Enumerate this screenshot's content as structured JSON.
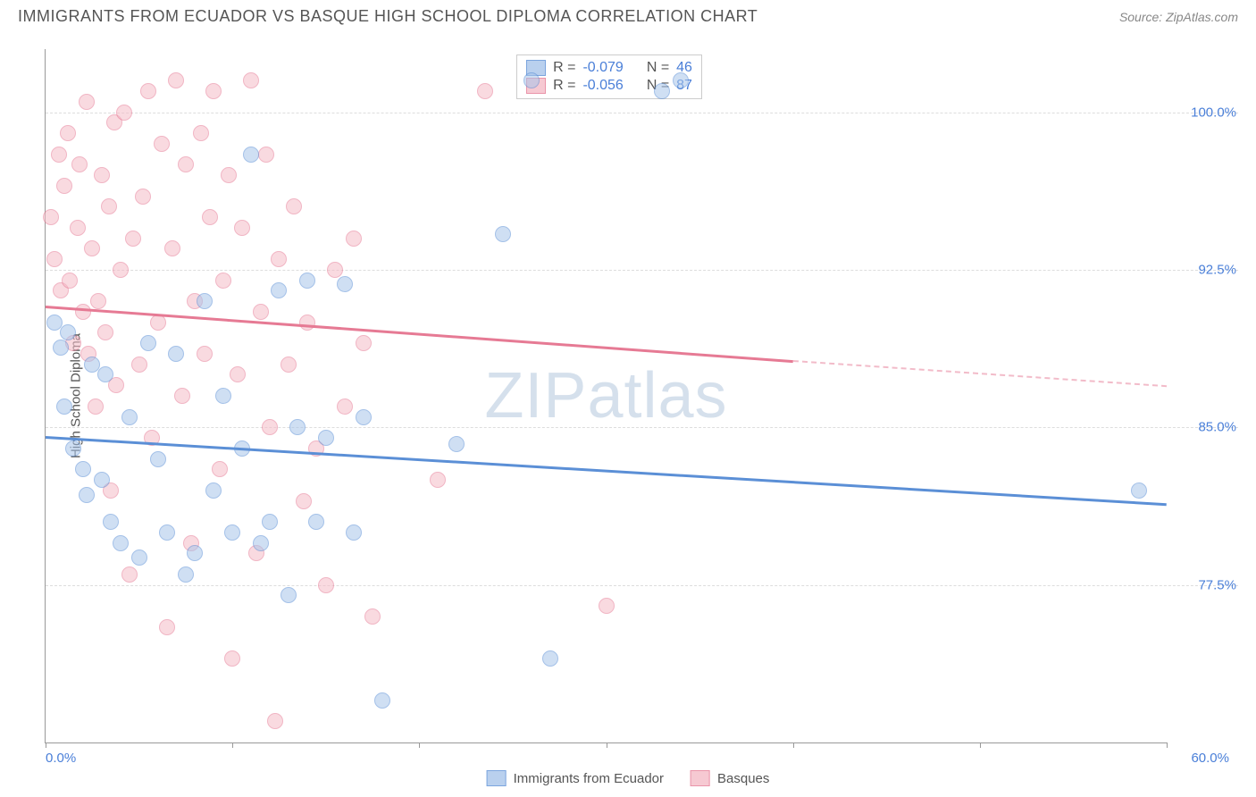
{
  "header": {
    "title": "IMMIGRANTS FROM ECUADOR VS BASQUE HIGH SCHOOL DIPLOMA CORRELATION CHART",
    "source_prefix": "Source: ",
    "source_name": "ZipAtlas.com"
  },
  "chart": {
    "type": "scatter",
    "y_axis_title": "High School Diploma",
    "x_min": 0.0,
    "x_max": 60.0,
    "x_min_label": "0.0%",
    "x_max_label": "60.0%",
    "x_tick_positions": [
      0,
      10,
      20,
      30,
      40,
      50,
      60
    ],
    "y_min": 70.0,
    "y_max": 103.0,
    "y_gridlines": [
      {
        "value": 100.0,
        "label": "100.0%"
      },
      {
        "value": 92.5,
        "label": "92.5%"
      },
      {
        "value": 85.0,
        "label": "85.0%"
      },
      {
        "value": 77.5,
        "label": "77.5%"
      }
    ],
    "background_color": "#ffffff",
    "grid_color": "#dddddd",
    "series": [
      {
        "name": "Immigrants from Ecuador",
        "fill_color": "#a8c5ea",
        "stroke_color": "#5b8fd6",
        "fill_opacity": 0.55,
        "marker_radius": 9,
        "R": "-0.079",
        "N": "46",
        "trend": {
          "x1": 0,
          "y1": 84.6,
          "x2": 60,
          "y2": 81.4,
          "dashed_from_x": 60
        },
        "points": [
          [
            0.5,
            90.0
          ],
          [
            0.8,
            88.8
          ],
          [
            1.0,
            86.0
          ],
          [
            1.2,
            89.5
          ],
          [
            1.5,
            84.0
          ],
          [
            2.0,
            83.0
          ],
          [
            2.2,
            81.8
          ],
          [
            2.5,
            88.0
          ],
          [
            3.0,
            82.5
          ],
          [
            3.2,
            87.5
          ],
          [
            3.5,
            80.5
          ],
          [
            4.0,
            79.5
          ],
          [
            4.5,
            85.5
          ],
          [
            5.0,
            78.8
          ],
          [
            5.5,
            89.0
          ],
          [
            6.0,
            83.5
          ],
          [
            6.5,
            80.0
          ],
          [
            7.0,
            88.5
          ],
          [
            7.5,
            78.0
          ],
          [
            8.0,
            79.0
          ],
          [
            8.5,
            91.0
          ],
          [
            9.0,
            82.0
          ],
          [
            9.5,
            86.5
          ],
          [
            10.0,
            80.0
          ],
          [
            10.5,
            84.0
          ],
          [
            11.0,
            98.0
          ],
          [
            11.5,
            79.5
          ],
          [
            12.0,
            80.5
          ],
          [
            12.5,
            91.5
          ],
          [
            13.0,
            77.0
          ],
          [
            13.5,
            85.0
          ],
          [
            14.0,
            92.0
          ],
          [
            14.5,
            80.5
          ],
          [
            15.0,
            84.5
          ],
          [
            16.0,
            91.8
          ],
          [
            16.5,
            80.0
          ],
          [
            17.0,
            85.5
          ],
          [
            18.0,
            72.0
          ],
          [
            22.0,
            84.2
          ],
          [
            24.5,
            94.2
          ],
          [
            26.0,
            101.5
          ],
          [
            27.0,
            74.0
          ],
          [
            33.0,
            101.0
          ],
          [
            34.0,
            101.5
          ],
          [
            58.5,
            82.0
          ]
        ]
      },
      {
        "name": "Basques",
        "fill_color": "#f5bcc8",
        "stroke_color": "#e67a94",
        "fill_opacity": 0.55,
        "marker_radius": 9,
        "R": "-0.056",
        "N": "87",
        "trend": {
          "x1": 0,
          "y1": 90.8,
          "x2": 40,
          "y2": 88.2,
          "dashed_from_x": 40,
          "dash_x2": 60,
          "dash_y2": 87.0
        },
        "points": [
          [
            0.3,
            95.0
          ],
          [
            0.5,
            93.0
          ],
          [
            0.7,
            98.0
          ],
          [
            0.8,
            91.5
          ],
          [
            1.0,
            96.5
          ],
          [
            1.2,
            99.0
          ],
          [
            1.3,
            92.0
          ],
          [
            1.5,
            89.0
          ],
          [
            1.7,
            94.5
          ],
          [
            1.8,
            97.5
          ],
          [
            2.0,
            90.5
          ],
          [
            2.2,
            100.5
          ],
          [
            2.3,
            88.5
          ],
          [
            2.5,
            93.5
          ],
          [
            2.7,
            86.0
          ],
          [
            2.8,
            91.0
          ],
          [
            3.0,
            97.0
          ],
          [
            3.2,
            89.5
          ],
          [
            3.4,
            95.5
          ],
          [
            3.5,
            82.0
          ],
          [
            3.7,
            99.5
          ],
          [
            3.8,
            87.0
          ],
          [
            4.0,
            92.5
          ],
          [
            4.2,
            100.0
          ],
          [
            4.5,
            78.0
          ],
          [
            4.7,
            94.0
          ],
          [
            5.0,
            88.0
          ],
          [
            5.2,
            96.0
          ],
          [
            5.5,
            101.0
          ],
          [
            5.7,
            84.5
          ],
          [
            6.0,
            90.0
          ],
          [
            6.2,
            98.5
          ],
          [
            6.5,
            75.5
          ],
          [
            6.8,
            93.5
          ],
          [
            7.0,
            101.5
          ],
          [
            7.3,
            86.5
          ],
          [
            7.5,
            97.5
          ],
          [
            7.8,
            79.5
          ],
          [
            8.0,
            91.0
          ],
          [
            8.3,
            99.0
          ],
          [
            8.5,
            88.5
          ],
          [
            8.8,
            95.0
          ],
          [
            9.0,
            101.0
          ],
          [
            9.3,
            83.0
          ],
          [
            9.5,
            92.0
          ],
          [
            9.8,
            97.0
          ],
          [
            10.0,
            74.0
          ],
          [
            10.3,
            87.5
          ],
          [
            10.5,
            94.5
          ],
          [
            11.0,
            101.5
          ],
          [
            11.3,
            79.0
          ],
          [
            11.5,
            90.5
          ],
          [
            11.8,
            98.0
          ],
          [
            12.0,
            85.0
          ],
          [
            12.3,
            71.0
          ],
          [
            12.5,
            93.0
          ],
          [
            13.0,
            88.0
          ],
          [
            13.3,
            95.5
          ],
          [
            13.8,
            81.5
          ],
          [
            14.0,
            90.0
          ],
          [
            14.5,
            84.0
          ],
          [
            15.0,
            77.5
          ],
          [
            15.5,
            92.5
          ],
          [
            16.0,
            86.0
          ],
          [
            16.5,
            94.0
          ],
          [
            17.0,
            89.0
          ],
          [
            17.5,
            76.0
          ],
          [
            21.0,
            82.5
          ],
          [
            23.5,
            101.0
          ],
          [
            30.0,
            76.5
          ]
        ]
      }
    ],
    "watermark": "ZIPatlas"
  },
  "legend": {
    "series1_label": "Immigrants from Ecuador",
    "series2_label": "Basques",
    "R_label": "R =",
    "N_label": "N ="
  }
}
